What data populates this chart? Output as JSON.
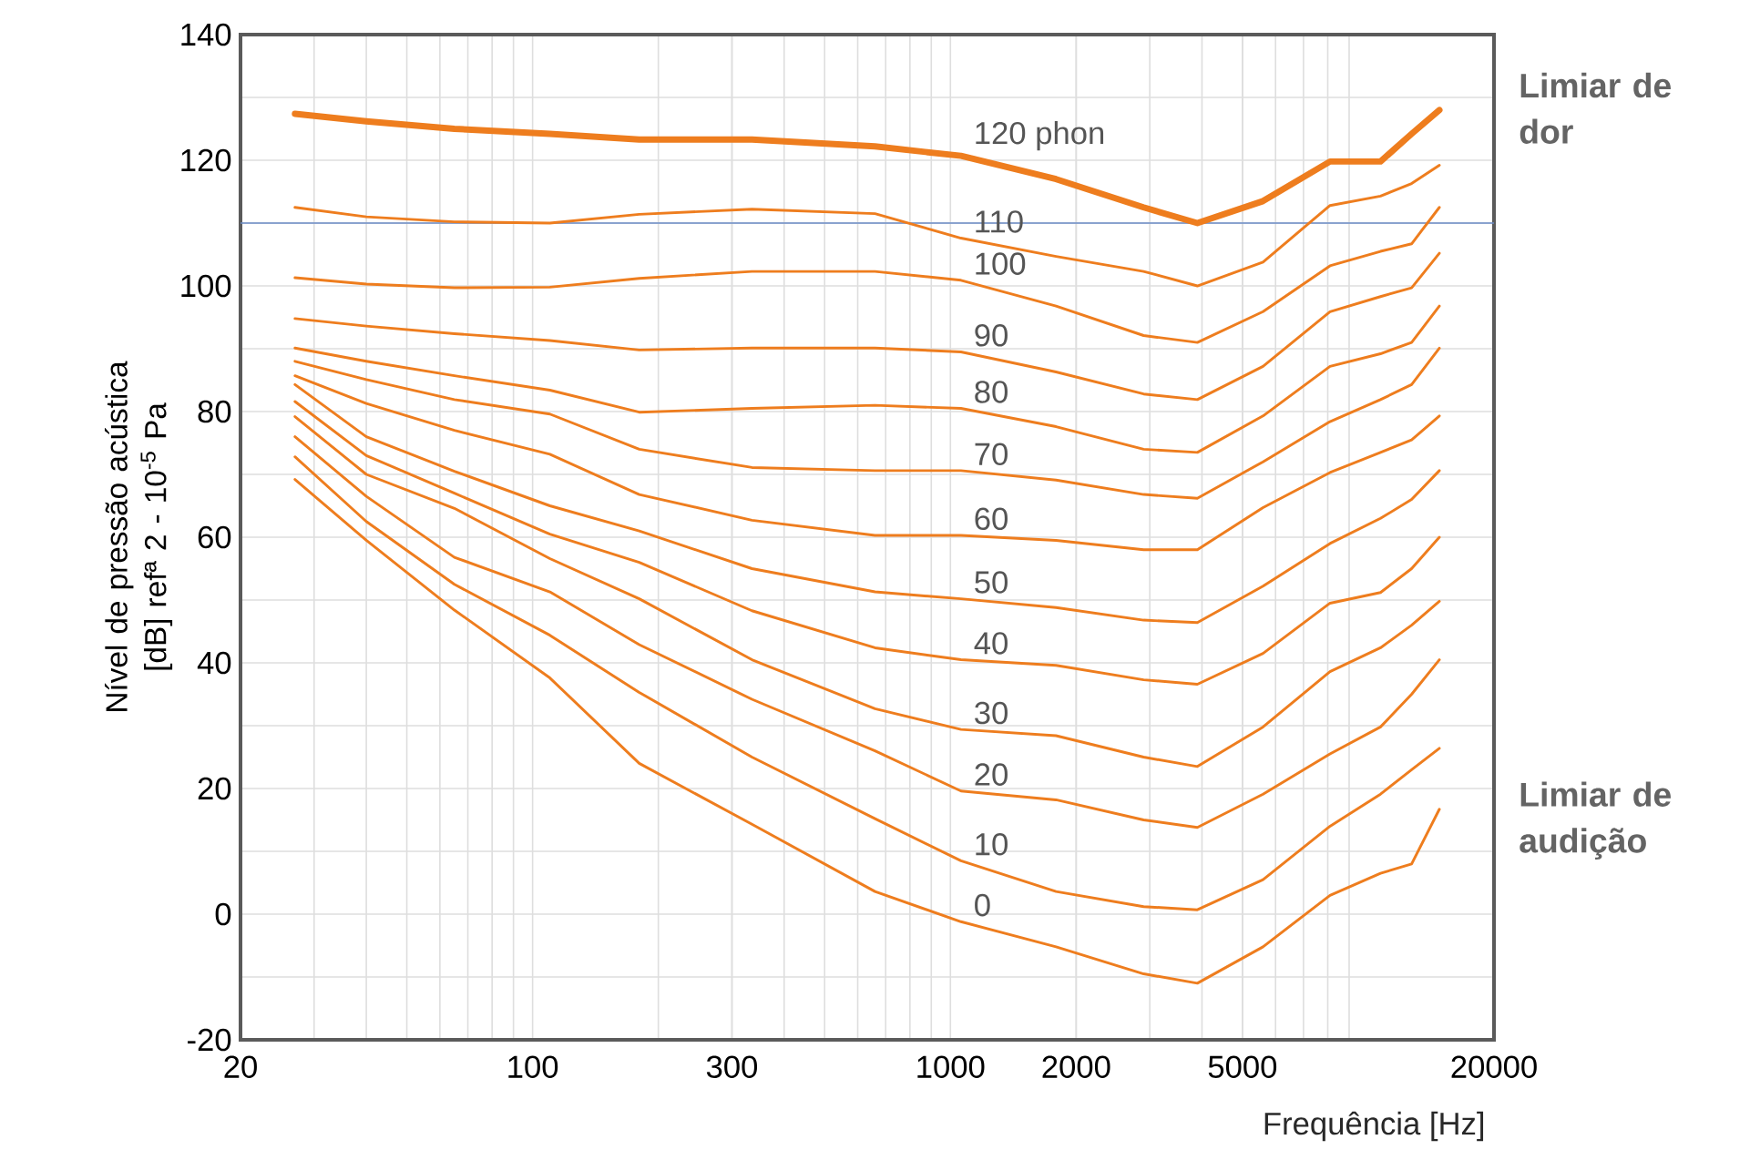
{
  "chart_data": {
    "type": "line",
    "xlabel": "Frequência [Hz]",
    "ylabel": "Nível de pressão acústica [dB] refª 2 - 10$^{-5}$ Pa",
    "log": "x",
    "grid": true,
    "xlim": [
      20,
      20000
    ],
    "ylim": [
      -20,
      140
    ],
    "xticks": [
      20,
      100,
      300,
      1000,
      2000,
      5000,
      20000
    ],
    "yticks": [
      -20,
      0,
      20,
      40,
      60,
      80,
      100,
      120,
      140
    ],
    "x": [
      27,
      40,
      65,
      110,
      180,
      335,
      660,
      1060,
      1790,
      2900,
      3900,
      5600,
      8100,
      10700,
      12700,
      14800
    ],
    "series": [
      {
        "name": "120 phon",
        "color": "#ee7d1e",
        "values": [
          127.4,
          126.2,
          125,
          124.2,
          123.3,
          123.3,
          122.2,
          120.7,
          117,
          112.5,
          110,
          113.5,
          119.8,
          119.8,
          124.2,
          128
        ]
      },
      {
        "name": "110",
        "color": "#ee7d1e",
        "values": [
          112.5,
          111,
          110.2,
          110,
          111.4,
          112.2,
          111.5,
          107.6,
          104.7,
          102.3,
          100,
          103.8,
          112.8,
          114.3,
          116.3,
          119.2
        ]
      },
      {
        "name": "100",
        "color": "#ee7d1e",
        "values": [
          101.3,
          100.3,
          99.7,
          99.8,
          101.2,
          102.3,
          102.3,
          100.9,
          96.8,
          92.1,
          91,
          95.9,
          103.2,
          105.5,
          106.7,
          112.5
        ]
      },
      {
        "name": "90",
        "color": "#ee7d1e",
        "values": [
          94.8,
          93.6,
          92.4,
          91.3,
          89.8,
          90.1,
          90.1,
          89.5,
          86.3,
          82.8,
          81.9,
          87.2,
          95.9,
          98.3,
          99.7,
          105.2
        ]
      },
      {
        "name": "80",
        "color": "#ee7d1e",
        "values": [
          90.1,
          88,
          85.7,
          83.4,
          79.9,
          80.5,
          81,
          80.5,
          77.6,
          74,
          73.5,
          79.3,
          87.2,
          89.2,
          91,
          96.8
        ]
      },
      {
        "name": "70",
        "color": "#ee7d1e",
        "values": [
          88,
          85.1,
          81.9,
          79.6,
          74,
          71.1,
          70.6,
          70.6,
          69.1,
          66.8,
          66.2,
          72,
          78.4,
          81.9,
          84.3,
          90.1
        ]
      },
      {
        "name": "60",
        "color": "#ee7d1e",
        "values": [
          85.7,
          81.3,
          77,
          73.2,
          66.8,
          62.7,
          60.3,
          60.3,
          59.5,
          58,
          58,
          64.7,
          70.3,
          73.5,
          75.5,
          79.3
        ]
      },
      {
        "name": "50",
        "color": "#ee7d1e",
        "values": [
          84.3,
          76,
          70.5,
          65,
          61,
          55,
          51.3,
          50.2,
          48.8,
          46.8,
          46.4,
          52.2,
          59,
          63,
          66,
          70.6
        ]
      },
      {
        "name": "40",
        "color": "#ee7d1e",
        "values": [
          81.6,
          73,
          67,
          60.5,
          56,
          48.3,
          42.4,
          40.5,
          39.6,
          37.3,
          36.6,
          41.5,
          49.5,
          51.2,
          55,
          60
        ]
      },
      {
        "name": "30",
        "color": "#ee7d1e",
        "values": [
          79.2,
          70,
          64.6,
          56.6,
          50.2,
          40.5,
          32.7,
          29.4,
          28.4,
          25,
          23.5,
          29.8,
          38.6,
          42.4,
          46,
          49.8
        ]
      },
      {
        "name": "20",
        "color": "#ee7d1e",
        "values": [
          76,
          66.5,
          56.8,
          51.3,
          42.9,
          34.2,
          26,
          19.6,
          18.2,
          15,
          13.8,
          19.1,
          25.5,
          29.8,
          35,
          40.5
        ]
      },
      {
        "name": "10",
        "color": "#ee7d1e",
        "values": [
          72.8,
          62.5,
          52.5,
          44.4,
          35.3,
          25,
          15.2,
          8.5,
          3.6,
          1.2,
          0.7,
          5.5,
          14,
          19.1,
          23,
          26.4
        ]
      },
      {
        "name": "0",
        "color": "#ee7d1e",
        "values": [
          69.2,
          59.5,
          48.4,
          37.6,
          24,
          14.3,
          3.6,
          -1.2,
          -5.2,
          -9.5,
          -11,
          -5.2,
          3,
          6.5,
          8,
          16.7
        ]
      }
    ],
    "ref_lines": [
      {
        "axis": "y",
        "value": 110,
        "color": "#6b8cc7"
      }
    ],
    "annotations": [
      "Limiar de dor",
      "Limiar de audição"
    ]
  }
}
